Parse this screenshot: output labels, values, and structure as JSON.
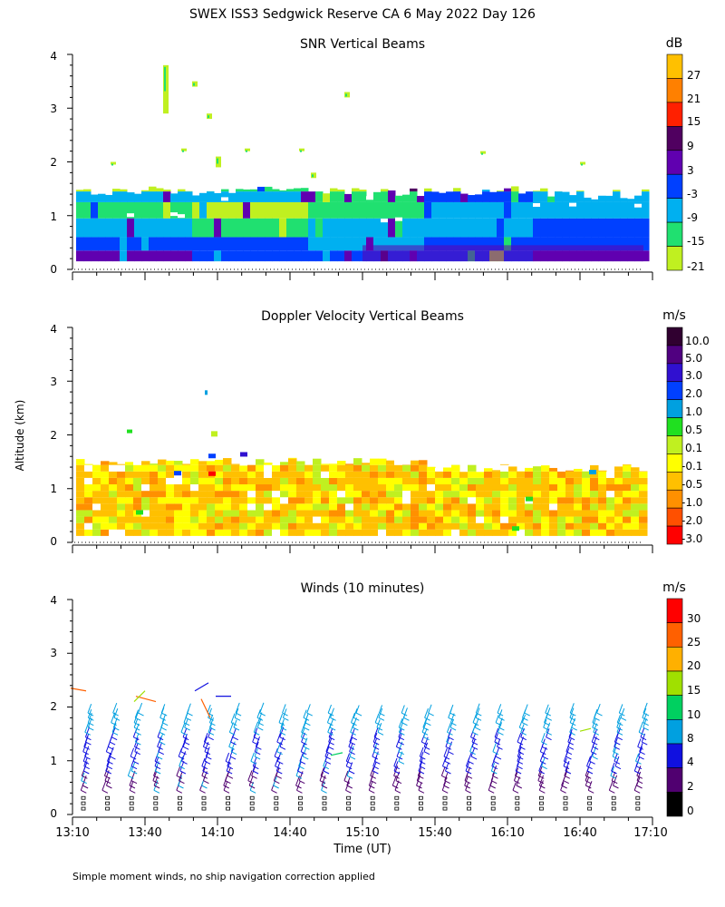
{
  "title": "SWEX ISS3 Sedgwick Reserve CA   6 May 2022 Day 126",
  "ylabel": "Altitude (km)",
  "xlabel": "Time (UT)",
  "footnote": "Simple moment winds, no ship navigation correction applied",
  "chart_data": [
    {
      "type": "heatmap",
      "title": "SNR Vertical Beams",
      "unit": "dB",
      "y_ticks": [
        "4",
        "3",
        "2",
        "1",
        "0"
      ],
      "ylim": [
        0,
        4
      ],
      "colorbar_labels": [
        "27",
        "21",
        "15",
        "9",
        "3",
        "-3",
        "-9",
        "-15",
        "-21"
      ],
      "colorbar_colors": [
        "#ffc000",
        "#ff8000",
        "#ff2000",
        "#500060",
        "#6000b0",
        "#0040ff",
        "#00b0f0",
        "#20e070",
        "#c0f020"
      ],
      "data_extent_km": [
        0.15,
        1.55
      ]
    },
    {
      "type": "heatmap",
      "title": "Doppler Velocity Vertical Beams",
      "unit": "m/s",
      "y_ticks": [
        "4",
        "3",
        "2",
        "1",
        "0"
      ],
      "ylim": [
        0,
        4
      ],
      "colorbar_labels": [
        "10.0",
        "5.0",
        "3.0",
        "2.0",
        "1.0",
        "0.5",
        "0.1",
        "-0.1",
        "-0.5",
        "-1.0",
        "-2.0",
        "-3.0"
      ],
      "colorbar_colors": [
        "#300030",
        "#500080",
        "#3010d0",
        "#0040ff",
        "#00a0e0",
        "#20e020",
        "#c0f020",
        "#ffff00",
        "#ffc000",
        "#ff9000",
        "#ff5000",
        "#ff0000"
      ],
      "data_extent_km": [
        0.1,
        1.55
      ]
    },
    {
      "type": "scatter",
      "title": "Winds (10 minutes)",
      "unit": "m/s",
      "y_ticks": [
        "4",
        "3",
        "2",
        "1",
        "0"
      ],
      "ylim": [
        0,
        4
      ],
      "colorbar_labels": [
        "30",
        "25",
        "20",
        "15",
        "10",
        "8",
        "4",
        "2",
        "0"
      ],
      "colorbar_colors": [
        "#ff0000",
        "#ff6000",
        "#ffb000",
        "#a0e000",
        "#00d060",
        "#00a0e0",
        "#1010e0",
        "#500070",
        "#000000"
      ],
      "x_ticks": [
        "13:10",
        "13:40",
        "14:10",
        "14:40",
        "15:10",
        "15:40",
        "16:10",
        "16:40",
        "17:10"
      ],
      "profile_count": 24
    }
  ]
}
